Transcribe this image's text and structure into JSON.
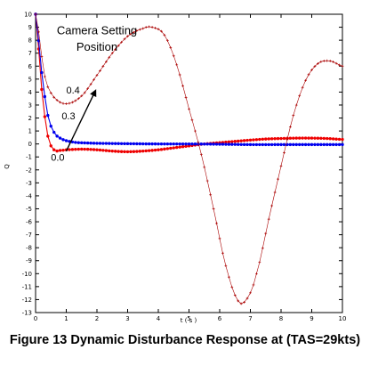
{
  "caption": "Figure 13 Dynamic Disturbance Response at (TAS=29kts)",
  "chart_data": {
    "type": "line",
    "title": "",
    "xlabel": "t ( s )",
    "ylabel": "Q",
    "xlim": [
      0,
      10
    ],
    "ylim": [
      -13,
      10
    ],
    "xticks": [
      0,
      1,
      2,
      3,
      4,
      5,
      6,
      7,
      8,
      9,
      10
    ],
    "yticks": [
      10,
      9,
      8,
      7,
      6,
      5,
      4,
      3,
      2,
      1,
      0,
      -1,
      -2,
      -3,
      -4,
      -5,
      -6,
      -7,
      -8,
      -9,
      -10,
      -11,
      -12,
      -13
    ],
    "grid": false,
    "series": [
      {
        "name": "0.0",
        "color": "#ee0000",
        "marker": "dot",
        "x": [
          0,
          0.2,
          0.4,
          0.6,
          0.8,
          1.0,
          1.5,
          2,
          2.5,
          3,
          3.5,
          4,
          4.5,
          5,
          5.5,
          6,
          6.5,
          7,
          7.5,
          8,
          8.5,
          9,
          9.5,
          10
        ],
        "y": [
          10,
          4.2,
          0.6,
          -0.45,
          -0.5,
          -0.45,
          -0.4,
          -0.45,
          -0.55,
          -0.6,
          -0.55,
          -0.45,
          -0.3,
          -0.15,
          0.0,
          0.1,
          0.2,
          0.3,
          0.38,
          0.42,
          0.45,
          0.45,
          0.42,
          0.35
        ]
      },
      {
        "name": "0.3",
        "color": "#0000ee",
        "marker": "dot",
        "x": [
          0,
          0.2,
          0.4,
          0.6,
          0.8,
          1.0,
          1.3,
          1.6,
          2,
          3,
          4,
          5,
          6,
          7,
          8,
          9,
          10
        ],
        "y": [
          10,
          5.5,
          2.2,
          0.9,
          0.45,
          0.25,
          0.12,
          0.08,
          0.05,
          0.02,
          0.0,
          0.0,
          -0.02,
          -0.05,
          -0.05,
          -0.05,
          -0.05
        ]
      },
      {
        "name": "0.4",
        "color": "#aa0000",
        "marker": "cross",
        "x": [
          0,
          0.3,
          0.6,
          1.0,
          1.5,
          2.0,
          2.5,
          3.0,
          3.5,
          3.8,
          4.2,
          4.6,
          5.0,
          5.4,
          5.8,
          6.2,
          6.6,
          6.9,
          7.2,
          7.6,
          8.0,
          8.4,
          8.8,
          9.2,
          9.6,
          10
        ],
        "y": [
          10,
          5.2,
          3.6,
          3.1,
          3.7,
          5.3,
          7.0,
          8.3,
          8.9,
          9.0,
          8.4,
          6.1,
          2.7,
          -0.8,
          -5.0,
          -9.4,
          -12.1,
          -11.9,
          -10.0,
          -5.8,
          -1.7,
          2.2,
          4.9,
          6.2,
          6.4,
          6.0
        ]
      }
    ],
    "annotations": [
      {
        "text": "Camera Setting",
        "x": 2.0,
        "y": 8.45
      },
      {
        "text": "Position",
        "x": 2.0,
        "y": 7.2
      },
      {
        "text": "0.4",
        "x": 1.0,
        "y": 3.9
      },
      {
        "text": "0.3",
        "x": 0.85,
        "y": 1.9
      },
      {
        "text": "0.0",
        "x": 0.5,
        "y": -1.3
      }
    ],
    "arrow": {
      "from": [
        1.0,
        -0.55
      ],
      "to": [
        1.95,
        4.1
      ]
    }
  }
}
